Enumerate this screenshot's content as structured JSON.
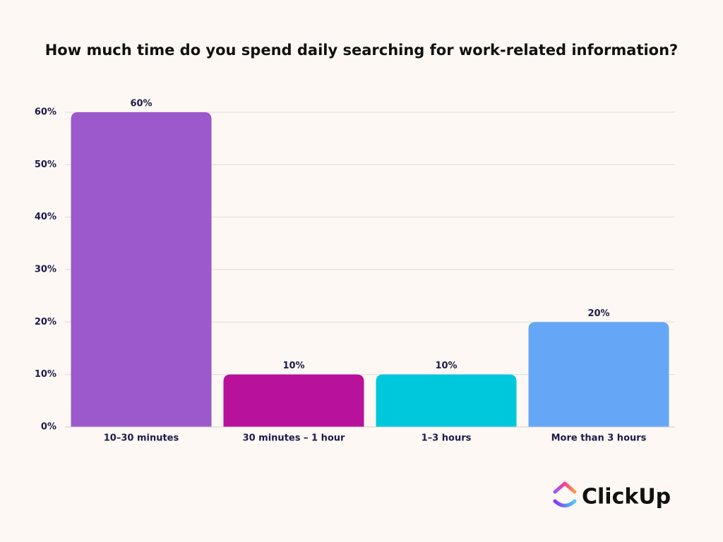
{
  "chart_data": {
    "type": "bar",
    "title": "How much time do you spend daily searching for work-related information?",
    "categories": [
      "10–30 minutes",
      "30 minutes – 1 hour",
      "1–3 hours",
      "More than 3 hours"
    ],
    "values": [
      60,
      10,
      10,
      20
    ],
    "value_labels": [
      "60%",
      "10%",
      "10%",
      "20%"
    ],
    "colors": [
      "#9b59cc",
      "#b8119b",
      "#00c8dc",
      "#66a6f7"
    ],
    "ylim": [
      0,
      60
    ],
    "yticks": [
      {
        "value": 0,
        "label": "0%"
      },
      {
        "value": 10,
        "label": "10%"
      },
      {
        "value": 20,
        "label": "20%"
      },
      {
        "value": 30,
        "label": "30%"
      },
      {
        "value": 40,
        "label": "40%"
      },
      {
        "value": 50,
        "label": "50%"
      },
      {
        "value": 60,
        "label": "60%"
      }
    ],
    "grid": true
  },
  "logo": {
    "text": "ClickUp"
  }
}
